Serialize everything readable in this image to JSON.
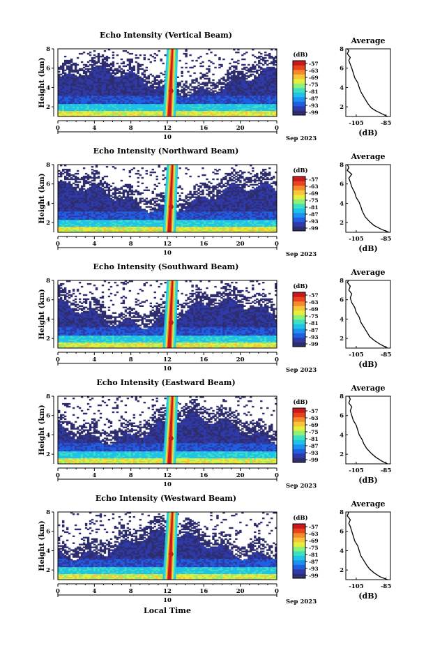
{
  "figure": {
    "xlabel": "Local Time",
    "colors": [
      "#2e2d6e",
      "#2f3aa8",
      "#1f5fe0",
      "#1e90f0",
      "#20c3e8",
      "#3fe0c0",
      "#8ef07a",
      "#e3ef3c",
      "#f8c43a",
      "#f58a2c",
      "#e8421e",
      "#c81a1a"
    ]
  },
  "chart_data": [
    {
      "type": "heatmap",
      "title": "Echo Intensity (Vertical Beam)",
      "ylabel": "Height (km)",
      "x_ticks": [
        "0",
        "4",
        "8",
        "12",
        "16",
        "20",
        "0"
      ],
      "date_tick": "10",
      "date_label": "Sep 2023",
      "xlim": [
        0,
        24
      ],
      "ylim": [
        1,
        8
      ],
      "y_ticks": [
        "2",
        "4",
        "6",
        "8"
      ],
      "colorbar": {
        "unit": "(dB)",
        "ticks": [
          "-57",
          "-63",
          "-69",
          "-75",
          "-81",
          "-87",
          "-93",
          "-99"
        ]
      },
      "profile": {
        "title": "Average",
        "xlabel": "(dB)",
        "x_ticks": [
          "-105",
          "-85"
        ],
        "xlim": [
          -112,
          -82
        ],
        "y_ticks": [
          "2",
          "4",
          "6",
          "8"
        ],
        "values": [
          [
            -84,
            1.0
          ],
          [
            -88,
            1.3
          ],
          [
            -92,
            1.6
          ],
          [
            -95,
            1.9
          ],
          [
            -97,
            2.3
          ],
          [
            -99,
            2.8
          ],
          [
            -101,
            3.3
          ],
          [
            -102,
            3.6
          ],
          [
            -103,
            4.0
          ],
          [
            -104,
            4.5
          ],
          [
            -106,
            5.0
          ],
          [
            -107,
            5.5
          ],
          [
            -108,
            6.0
          ],
          [
            -109,
            6.4
          ],
          [
            -110,
            6.8
          ],
          [
            -109,
            7.1
          ],
          [
            -111,
            7.5
          ],
          [
            -110,
            7.8
          ],
          [
            -111,
            8.0
          ]
        ]
      }
    },
    {
      "type": "heatmap",
      "title": "Echo Intensity (Northward Beam)",
      "ylabel": "Height (km)",
      "x_ticks": [
        "0",
        "4",
        "8",
        "12",
        "16",
        "20",
        "0"
      ],
      "date_tick": "10",
      "date_label": "Sep 2023",
      "xlim": [
        0,
        24
      ],
      "ylim": [
        1,
        8
      ],
      "y_ticks": [
        "2",
        "4",
        "6",
        "8"
      ],
      "colorbar": {
        "unit": "(dB)",
        "ticks": [
          "-57",
          "-63",
          "-69",
          "-75",
          "-81",
          "-87",
          "-93",
          "-99"
        ]
      },
      "profile": {
        "title": "Average",
        "xlabel": "(dB)",
        "x_ticks": [
          "-105",
          "-85"
        ],
        "xlim": [
          -112,
          -82
        ],
        "y_ticks": [
          "2",
          "4",
          "6",
          "8"
        ],
        "values": [
          [
            -83,
            1.0
          ],
          [
            -88,
            1.3
          ],
          [
            -93,
            1.7
          ],
          [
            -96,
            2.1
          ],
          [
            -99,
            2.6
          ],
          [
            -101,
            3.2
          ],
          [
            -102,
            3.7
          ],
          [
            -103,
            4.1
          ],
          [
            -105,
            4.6
          ],
          [
            -106,
            5.1
          ],
          [
            -108,
            5.7
          ],
          [
            -109,
            6.2
          ],
          [
            -110,
            6.6
          ],
          [
            -108,
            7.0
          ],
          [
            -111,
            7.4
          ],
          [
            -110,
            7.7
          ],
          [
            -111,
            8.0
          ]
        ]
      }
    },
    {
      "type": "heatmap",
      "title": "Echo Intensity (Southward Beam)",
      "ylabel": "Height (km)",
      "x_ticks": [
        "0",
        "4",
        "8",
        "12",
        "16",
        "20",
        "0"
      ],
      "date_tick": "10",
      "date_label": "Sep 2023",
      "xlim": [
        0,
        24
      ],
      "ylim": [
        1,
        8
      ],
      "y_ticks": [
        "2",
        "4",
        "6",
        "8"
      ],
      "colorbar": {
        "unit": "(dB)",
        "ticks": [
          "-57",
          "-63",
          "-69",
          "-75",
          "-81",
          "-87",
          "-93",
          "-99"
        ]
      },
      "profile": {
        "title": "Average",
        "xlabel": "(dB)",
        "x_ticks": [
          "-105",
          "-85"
        ],
        "xlim": [
          -112,
          -82
        ],
        "y_ticks": [
          "2",
          "4",
          "6",
          "8"
        ],
        "values": [
          [
            -84,
            1.0
          ],
          [
            -89,
            1.4
          ],
          [
            -93,
            1.8
          ],
          [
            -96,
            2.2
          ],
          [
            -98,
            2.7
          ],
          [
            -100,
            3.2
          ],
          [
            -102,
            3.7
          ],
          [
            -103,
            4.2
          ],
          [
            -105,
            4.7
          ],
          [
            -106,
            5.2
          ],
          [
            -108,
            5.7
          ],
          [
            -109,
            6.2
          ],
          [
            -108,
            6.6
          ],
          [
            -110,
            7.0
          ],
          [
            -109,
            7.4
          ],
          [
            -111,
            7.8
          ],
          [
            -110,
            8.0
          ]
        ]
      }
    },
    {
      "type": "heatmap",
      "title": "Echo Intensity (Eastward Beam)",
      "ylabel": "Height (km)",
      "x_ticks": [
        "0",
        "4",
        "8",
        "12",
        "16",
        "20",
        "0"
      ],
      "date_tick": "10",
      "date_label": "Sep 2023",
      "xlim": [
        0,
        24
      ],
      "ylim": [
        1,
        8
      ],
      "y_ticks": [
        "2",
        "4",
        "6",
        "8"
      ],
      "colorbar": {
        "unit": "(dB)",
        "ticks": [
          "-57",
          "-63",
          "-69",
          "-75",
          "-81",
          "-87",
          "-93",
          "-99"
        ]
      },
      "profile": {
        "title": "Average",
        "xlabel": "(dB)",
        "x_ticks": [
          "-105",
          "-85"
        ],
        "xlim": [
          -112,
          -82
        ],
        "y_ticks": [
          "2",
          "4",
          "6",
          "8"
        ],
        "values": [
          [
            -84,
            1.0
          ],
          [
            -88,
            1.3
          ],
          [
            -92,
            1.7
          ],
          [
            -95,
            2.1
          ],
          [
            -98,
            2.6
          ],
          [
            -100,
            3.1
          ],
          [
            -101,
            3.5
          ],
          [
            -103,
            4.0
          ],
          [
            -104,
            4.5
          ],
          [
            -105,
            5.0
          ],
          [
            -107,
            5.5
          ],
          [
            -108,
            6.0
          ],
          [
            -109,
            6.5
          ],
          [
            -108,
            6.9
          ],
          [
            -110,
            7.3
          ],
          [
            -109,
            7.7
          ],
          [
            -110,
            8.0
          ]
        ]
      }
    },
    {
      "type": "heatmap",
      "title": "Echo Intensity (Westward Beam)",
      "ylabel": "Height (km)",
      "x_ticks": [
        "0",
        "4",
        "8",
        "12",
        "16",
        "20",
        "0"
      ],
      "date_tick": "10",
      "date_label": "Sep 2023",
      "xlim": [
        0,
        24
      ],
      "ylim": [
        1,
        8
      ],
      "y_ticks": [
        "2",
        "4",
        "6",
        "8"
      ],
      "colorbar": {
        "unit": "(dB)",
        "ticks": [
          "-57",
          "-63",
          "-69",
          "-75",
          "-81",
          "-87",
          "-93",
          "-99"
        ]
      },
      "profile": {
        "title": "Average",
        "xlabel": "(dB)",
        "x_ticks": [
          "-105",
          "-85"
        ],
        "xlim": [
          -112,
          -82
        ],
        "y_ticks": [
          "2",
          "4",
          "6",
          "8"
        ],
        "values": [
          [
            -84,
            1.0
          ],
          [
            -89,
            1.3
          ],
          [
            -93,
            1.7
          ],
          [
            -96,
            2.1
          ],
          [
            -98,
            2.5
          ],
          [
            -100,
            3.0
          ],
          [
            -102,
            3.5
          ],
          [
            -103,
            4.0
          ],
          [
            -104,
            4.5
          ],
          [
            -106,
            5.0
          ],
          [
            -107,
            5.5
          ],
          [
            -108,
            6.0
          ],
          [
            -109,
            6.5
          ],
          [
            -110,
            6.8
          ],
          [
            -109,
            7.2
          ],
          [
            -111,
            7.6
          ],
          [
            -110,
            8.0
          ]
        ]
      }
    }
  ]
}
